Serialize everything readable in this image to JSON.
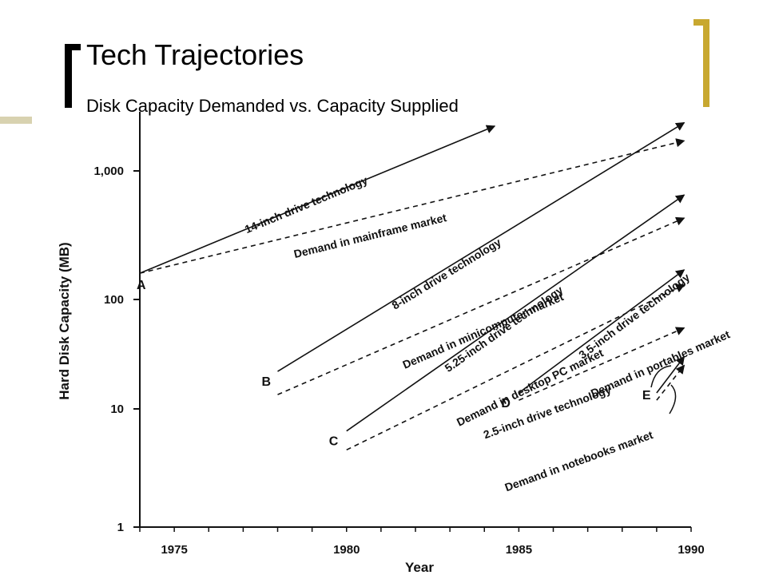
{
  "title": "Tech Trajectories",
  "subtitle": "Disk Capacity Demanded vs. Capacity Supplied",
  "colors": {
    "accent": "#c8a830",
    "bar": "#d8d2b0",
    "ink": "#111111"
  },
  "chart_data": {
    "type": "line",
    "scale": "log",
    "xlabel": "Year",
    "ylabel": "Hard Disk Capacity (MB)",
    "xlim": [
      1974,
      1990
    ],
    "ylim": [
      1,
      3000
    ],
    "x_ticks": [
      {
        "value": 1975,
        "label": "1975"
      },
      {
        "value": 1980,
        "label": "1980"
      },
      {
        "value": 1985,
        "label": "1985"
      },
      {
        "value": 1990,
        "label": "1990"
      }
    ],
    "y_ticks": [
      {
        "value": 1,
        "label": "1"
      },
      {
        "value": 10,
        "label": "10"
      },
      {
        "value": 100,
        "label": "100"
      },
      {
        "value": 1000,
        "label": "1,000"
      }
    ],
    "grid": false,
    "series": [
      {
        "name": "14-inch drive technology",
        "style": "solid",
        "x": [
          1974,
          1984.3
        ],
        "y": [
          160,
          2300
        ]
      },
      {
        "name": "Demand in mainframe market",
        "style": "dashed",
        "x": [
          1974,
          1989.8
        ],
        "y": [
          160,
          1750
        ]
      },
      {
        "name": "8-inch drive technology",
        "style": "solid",
        "x": [
          1978,
          1989.8
        ],
        "y": [
          22,
          2450
        ]
      },
      {
        "name": "Demand in minicomputer market",
        "style": "dashed",
        "x": [
          1978,
          1989.8
        ],
        "y": [
          13.5,
          430
        ]
      },
      {
        "name": "5.25-inch drive technology",
        "style": "solid",
        "x": [
          1980,
          1989.8
        ],
        "y": [
          6.5,
          650
        ]
      },
      {
        "name": "Demand in desktop PC market",
        "style": "dashed",
        "x": [
          1980,
          1989.8
        ],
        "y": [
          4.5,
          130
        ]
      },
      {
        "name": "3.5-inch drive technology",
        "style": "solid",
        "x": [
          1985,
          1989.8
        ],
        "y": [
          14,
          170
        ]
      },
      {
        "name": "Demand in portables market",
        "style": "dashed",
        "x": [
          1985,
          1989.8
        ],
        "y": [
          12,
          55
        ]
      },
      {
        "name": "2.5-inch drive technology",
        "style": "solid",
        "x": [
          1989,
          1989.8
        ],
        "y": [
          14,
          30
        ]
      },
      {
        "name": "Demand in notebooks market",
        "style": "dashed",
        "x": [
          1989,
          1989.8
        ],
        "y": [
          12,
          25
        ]
      }
    ],
    "points": [
      {
        "label": "A",
        "x": 1974,
        "y": 160
      },
      {
        "label": "B",
        "x": 1978,
        "y": 22
      },
      {
        "label": "C",
        "x": 1980,
        "y": 6.5
      },
      {
        "label": "D",
        "x": 1985,
        "y": 14
      },
      {
        "label": "E",
        "x": 1989,
        "y": 14
      }
    ]
  }
}
